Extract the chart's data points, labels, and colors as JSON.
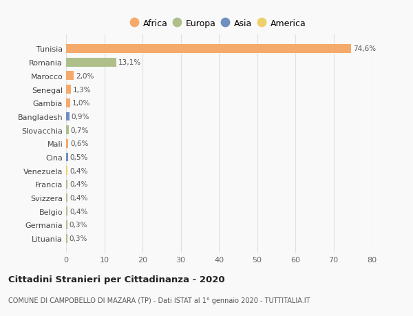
{
  "countries": [
    "Tunisia",
    "Romania",
    "Marocco",
    "Senegal",
    "Gambia",
    "Bangladesh",
    "Slovacchia",
    "Mali",
    "Cina",
    "Venezuela",
    "Francia",
    "Svizzera",
    "Belgio",
    "Germania",
    "Lituania"
  ],
  "values": [
    74.6,
    13.1,
    2.0,
    1.3,
    1.0,
    0.9,
    0.7,
    0.6,
    0.5,
    0.4,
    0.4,
    0.4,
    0.4,
    0.3,
    0.3
  ],
  "labels": [
    "74,6%",
    "13,1%",
    "2,0%",
    "1,3%",
    "1,0%",
    "0,9%",
    "0,7%",
    "0,6%",
    "0,5%",
    "0,4%",
    "0,4%",
    "0,4%",
    "0,4%",
    "0,3%",
    "0,3%"
  ],
  "continents": [
    "Africa",
    "Europa",
    "Africa",
    "Africa",
    "Africa",
    "Asia",
    "Europa",
    "Africa",
    "Asia",
    "America",
    "Europa",
    "Europa",
    "Europa",
    "Europa",
    "Europa"
  ],
  "colors": {
    "Africa": "#F5A96B",
    "Europa": "#AEBF8A",
    "Asia": "#6E8FBF",
    "America": "#EED06A"
  },
  "xlim": [
    0,
    80
  ],
  "xticks": [
    0,
    10,
    20,
    30,
    40,
    50,
    60,
    70,
    80
  ],
  "title": "Cittadini Stranieri per Cittadinanza - 2020",
  "subtitle": "COMUNE DI CAMPOBELLO DI MAZARA (TP) - Dati ISTAT al 1° gennaio 2020 - TUTTITALIA.IT",
  "background_color": "#f9f9f9",
  "grid_color": "#e0e0e0",
  "legend_order": [
    "Africa",
    "Europa",
    "Asia",
    "America"
  ]
}
